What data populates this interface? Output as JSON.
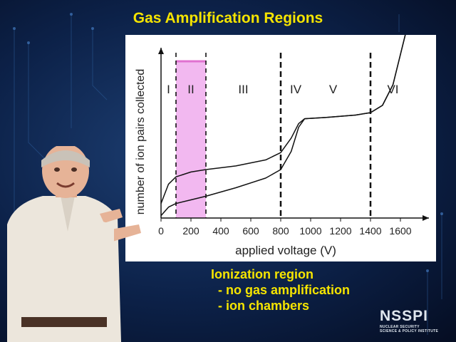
{
  "slide": {
    "title": "Gas Amplification Regions",
    "caption": {
      "line1": "Ionization region",
      "line2": "  - no gas amplification",
      "line3": "  - ion chambers"
    }
  },
  "logo": {
    "name": "NSSPI",
    "subtitle1": "NUCLEAR SECURITY",
    "subtitle2": "SCIENCE & POLICY INSTITUTE"
  },
  "colors": {
    "title": "#f5e400",
    "highlight": "#f2b8f0",
    "highlight_border": "#e070d0"
  },
  "chart_data": {
    "type": "line",
    "title": "",
    "xlabel": "applied voltage (V)",
    "ylabel": "number of ion pairs collected",
    "xlim": [
      0,
      1700
    ],
    "x_ticks": [
      0,
      200,
      400,
      600,
      800,
      1000,
      1200,
      1400,
      1600
    ],
    "x_tick_labels": [
      "0",
      "200",
      "400",
      "600",
      "800",
      "1000",
      "1200",
      "1400",
      "1600"
    ],
    "y_ticks_shown": false,
    "grid": false,
    "region_boundaries": [
      100,
      300,
      800,
      1400
    ],
    "regions": [
      {
        "label": "I",
        "from": 0,
        "to": 100
      },
      {
        "label": "II",
        "from": 100,
        "to": 300,
        "highlighted": true
      },
      {
        "label": "III",
        "from": 300,
        "to": 800
      },
      {
        "label": "IV",
        "from": 800,
        "to": 1400,
        "label_at": 900
      },
      {
        "label": "V",
        "from": 800,
        "to": 1400,
        "label_at": 1150
      },
      {
        "label": "VI",
        "from": 1400,
        "to": 1700
      }
    ],
    "series": [
      {
        "x": [
          0,
          50,
          100,
          200,
          300,
          500,
          700,
          800,
          870,
          920,
          960,
          1100,
          1300,
          1400,
          1480,
          1550,
          1600,
          1640
        ],
        "y": [
          0.12,
          0.28,
          0.34,
          0.38,
          0.4,
          0.43,
          0.48,
          0.54,
          0.66,
          0.78,
          0.82,
          0.83,
          0.85,
          0.87,
          0.93,
          1.1,
          1.35,
          1.55
        ]
      },
      {
        "x": [
          0,
          50,
          100,
          200,
          300,
          500,
          700,
          800,
          870,
          920,
          960,
          1100,
          1300,
          1400,
          1480,
          1550,
          1600,
          1640
        ],
        "y": [
          0.02,
          0.09,
          0.12,
          0.15,
          0.18,
          0.25,
          0.33,
          0.4,
          0.55,
          0.75,
          0.82,
          0.83,
          0.85,
          0.87,
          0.93,
          1.1,
          1.35,
          1.55
        ]
      }
    ]
  }
}
